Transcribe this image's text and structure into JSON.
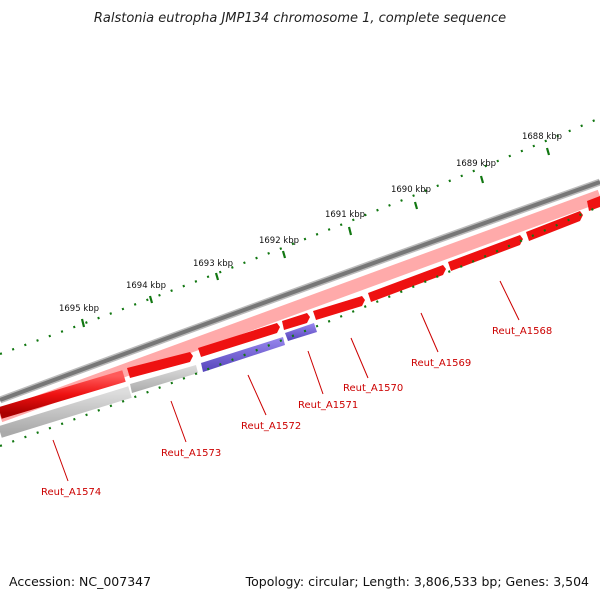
{
  "title": "Ralstonia eutropha JMP134 chromosome 1, complete sequence",
  "ticks": [
    {
      "label": "1688 kbp"
    },
    {
      "label": "1689 kbp"
    },
    {
      "label": "1690 kbp"
    },
    {
      "label": "1691 kbp"
    },
    {
      "label": "1692 kbp"
    },
    {
      "label": "1693 kbp"
    },
    {
      "label": "1694 kbp"
    },
    {
      "label": "1695 kbp"
    }
  ],
  "genes": [
    {
      "name": "Reut_A1568"
    },
    {
      "name": "Reut_A1569"
    },
    {
      "name": "Reut_A1570"
    },
    {
      "name": "Reut_A1571"
    },
    {
      "name": "Reut_A1572"
    },
    {
      "name": "Reut_A1573"
    },
    {
      "name": "Reut_A1574"
    }
  ],
  "footer": {
    "accession": "Accession: NC_007347",
    "topology": "Topology: circular; Length: 3,806,533 bp; Genes: 3,504"
  },
  "colors": {
    "forward_gene": "#ee1111",
    "reverse_gene_grey": "#bbbbbb",
    "reverse_gene_blue": "#7766dd",
    "backbone": "#777777",
    "tick": "#117711",
    "label": "#cc0000"
  }
}
